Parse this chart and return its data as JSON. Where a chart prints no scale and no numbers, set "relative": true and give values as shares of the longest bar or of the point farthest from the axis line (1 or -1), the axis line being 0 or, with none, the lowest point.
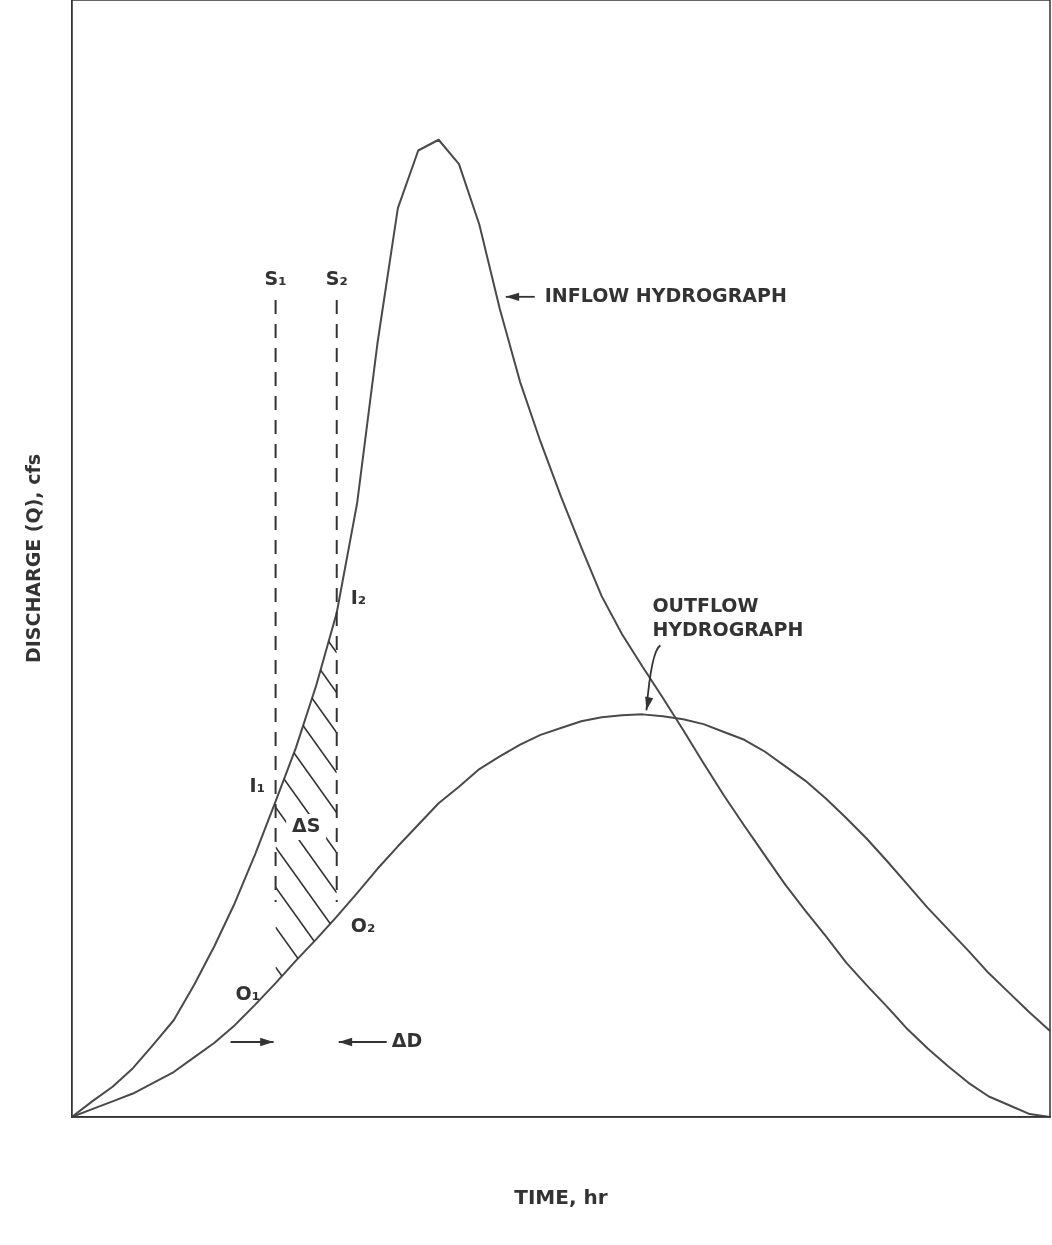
{
  "chart_data": {
    "type": "line",
    "relative": true,
    "xlabel": "TIME, hr",
    "ylabel": "DISCHARGE (Q), cfs",
    "tick_labels": false,
    "grid": false,
    "legend": false,
    "marker": "none",
    "line_style": "solid",
    "categories": [
      null,
      null,
      null,
      null,
      null,
      null,
      null,
      null,
      null,
      null,
      null,
      null,
      null,
      null,
      null,
      null,
      null,
      null,
      null,
      null,
      null,
      null,
      null,
      null,
      null,
      null,
      null,
      null,
      null,
      null,
      null,
      null,
      null,
      null,
      null,
      null,
      null,
      null,
      null,
      null,
      null,
      null,
      null,
      null,
      null,
      null,
      null,
      null,
      null
    ],
    "series": [
      {
        "name": "INFLOW HYDROGRAPH",
        "color": "#4a4a4a",
        "values": [
          0,
          0.016,
          0.031,
          0.05,
          0.074,
          0.099,
          0.135,
          0.175,
          0.219,
          0.269,
          0.323,
          0.378,
          0.442,
          0.516,
          0.628,
          0.792,
          0.93,
          0.989,
          1,
          0.975,
          0.913,
          0.827,
          0.752,
          0.691,
          0.635,
          0.583,
          0.533,
          0.494,
          0.461,
          0.429,
          0.396,
          0.362,
          0.329,
          0.298,
          0.268,
          0.238,
          0.211,
          0.185,
          0.158,
          0.135,
          0.113,
          0.09,
          0.07,
          0.052,
          0.035,
          0.021,
          0.012,
          0.003,
          0
        ]
      },
      {
        "name": "OUTFLOW HYDROGRAPH",
        "color": "#4a4a4a",
        "values": [
          0,
          0.008,
          0.016,
          0.024,
          0.035,
          0.046,
          0.061,
          0.076,
          0.094,
          0.115,
          0.137,
          0.16,
          0.182,
          0.205,
          0.229,
          0.254,
          0.277,
          0.299,
          0.321,
          0.338,
          0.356,
          0.369,
          0.381,
          0.391,
          0.398,
          0.405,
          0.409,
          0.411,
          0.412,
          0.41,
          0.407,
          0.402,
          0.394,
          0.386,
          0.374,
          0.359,
          0.344,
          0.326,
          0.306,
          0.285,
          0.262,
          0.238,
          0.214,
          0.192,
          0.17,
          0.147,
          0.127,
          0.107,
          0.088
        ]
      }
    ],
    "annotations": [
      "S₁",
      "S₂",
      "I₁",
      "I₂",
      "O₁",
      "O₂",
      "ΔS",
      "ΔD"
    ]
  }
}
